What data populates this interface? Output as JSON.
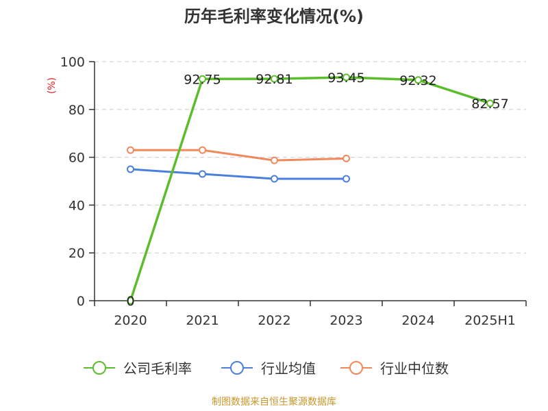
{
  "chart_data": {
    "type": "line",
    "title": "历年毛利率变化情况(%)",
    "ylabel": "(%)",
    "xlabel": "",
    "categories": [
      "2020",
      "2021",
      "2022",
      "2023",
      "2024",
      "2025H1"
    ],
    "ylim": [
      0,
      100
    ],
    "yticks": [
      0,
      20,
      40,
      60,
      80,
      100
    ],
    "grid": "horizontal-dashed",
    "legend_position": "bottom",
    "series": [
      {
        "name": "公司毛利率",
        "color": "#5bbd2b",
        "values": [
          0,
          92.75,
          92.81,
          93.45,
          92.32,
          82.57
        ],
        "labels": [
          "0",
          "92.75",
          "92.81",
          "93.45",
          "92.32",
          "82.57"
        ]
      },
      {
        "name": "行业均值",
        "color": "#4a7fdd",
        "values": [
          55,
          53,
          51,
          51,
          null,
          null
        ]
      },
      {
        "name": "行业中位数",
        "color": "#f2875a",
        "values": [
          63,
          63,
          58.7,
          59.5,
          null,
          null
        ]
      }
    ]
  },
  "source_note": "制图数据来自恒生聚源数据库",
  "colors": {
    "axis": "#333333",
    "grid": "#cccccc",
    "unit_label": "#e02020",
    "source": "#c8962a"
  }
}
